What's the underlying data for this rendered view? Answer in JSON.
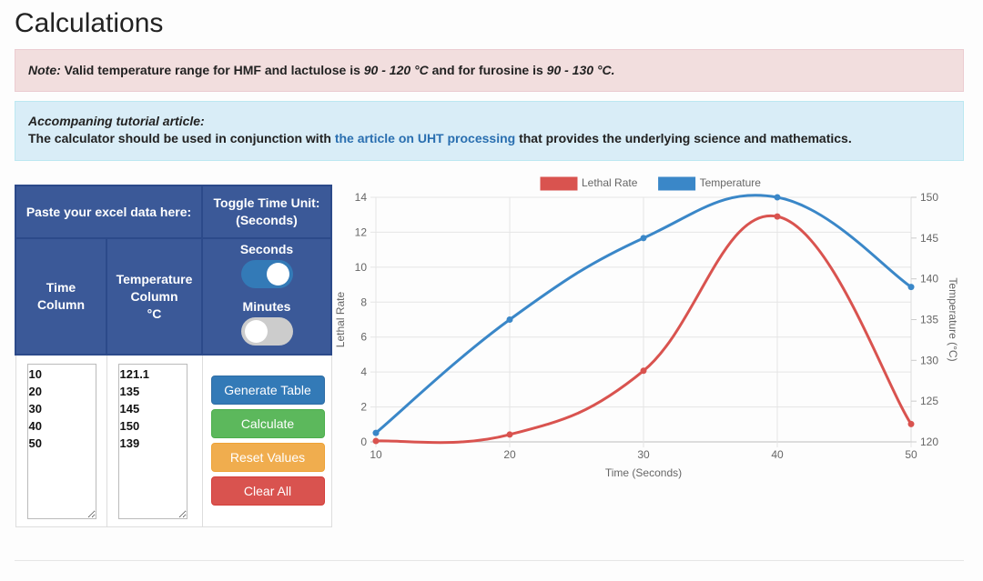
{
  "page": {
    "title": "Calculations"
  },
  "note_alert": {
    "label": "Note:",
    "text_1": " Valid temperature range for HMF and lactulose is ",
    "range_1": "90 - 120 °C",
    "text_2": " and for furosine is ",
    "range_2": "90 - 130 °C."
  },
  "info_alert": {
    "heading": "Accompaning tutorial article:",
    "text_1": "The calculator should be used in conjunction with ",
    "link_text": "the article on UHT processing",
    "text_2": " that provides the underlying science and mathematics."
  },
  "calc_table": {
    "paste_header": "Paste your excel data here:",
    "toggle_header_line1": "Toggle Time Unit:",
    "toggle_header_line2": "(Seconds)",
    "time_col_header_line1": "Time",
    "time_col_header_line2": "Column",
    "temp_col_header_line1": "Temperature",
    "temp_col_header_line2": "Column",
    "temp_col_header_line3": "°C",
    "seconds_label": "Seconds",
    "seconds_on": true,
    "minutes_label": "Minutes",
    "minutes_on": false,
    "time_values": "10\n20\n30\n40\n50",
    "temp_values": "121.1\n135\n145\n150\n139"
  },
  "buttons": {
    "generate": "Generate Table",
    "calculate": "Calculate",
    "reset": "Reset Values",
    "clear": "Clear All"
  },
  "colors": {
    "header_blue": "#3b5998",
    "lethal_rate": "#d9534f",
    "temperature": "#3a87c8",
    "primary": "#337ab7",
    "success": "#5cb85c",
    "warning": "#f0ad4e",
    "danger": "#d9534f"
  },
  "chart_data": {
    "type": "line",
    "title": "",
    "x": [
      10,
      20,
      30,
      40,
      50
    ],
    "xlabel": "Time (Seconds)",
    "series": [
      {
        "name": "Lethal Rate",
        "axis": "left",
        "values": [
          0.05,
          0.42,
          4.07,
          12.9,
          1.02
        ],
        "color": "#d9534f"
      },
      {
        "name": "Temperature",
        "axis": "right",
        "values": [
          121.1,
          135,
          145,
          150,
          139
        ],
        "color": "#3a87c8"
      }
    ],
    "ylabel_left": "Lethal Rate",
    "ylim_left": [
      0,
      14
    ],
    "yticks_left": [
      0,
      2,
      4,
      6,
      8,
      10,
      12,
      14
    ],
    "ylabel_right": "Temperature (°C)",
    "ylim_right": [
      120,
      150
    ],
    "yticks_right": [
      120,
      125,
      130,
      135,
      140,
      145,
      150
    ],
    "xticks": [
      10,
      20,
      30,
      40,
      50
    ],
    "grid": true,
    "legend_position": "top"
  }
}
